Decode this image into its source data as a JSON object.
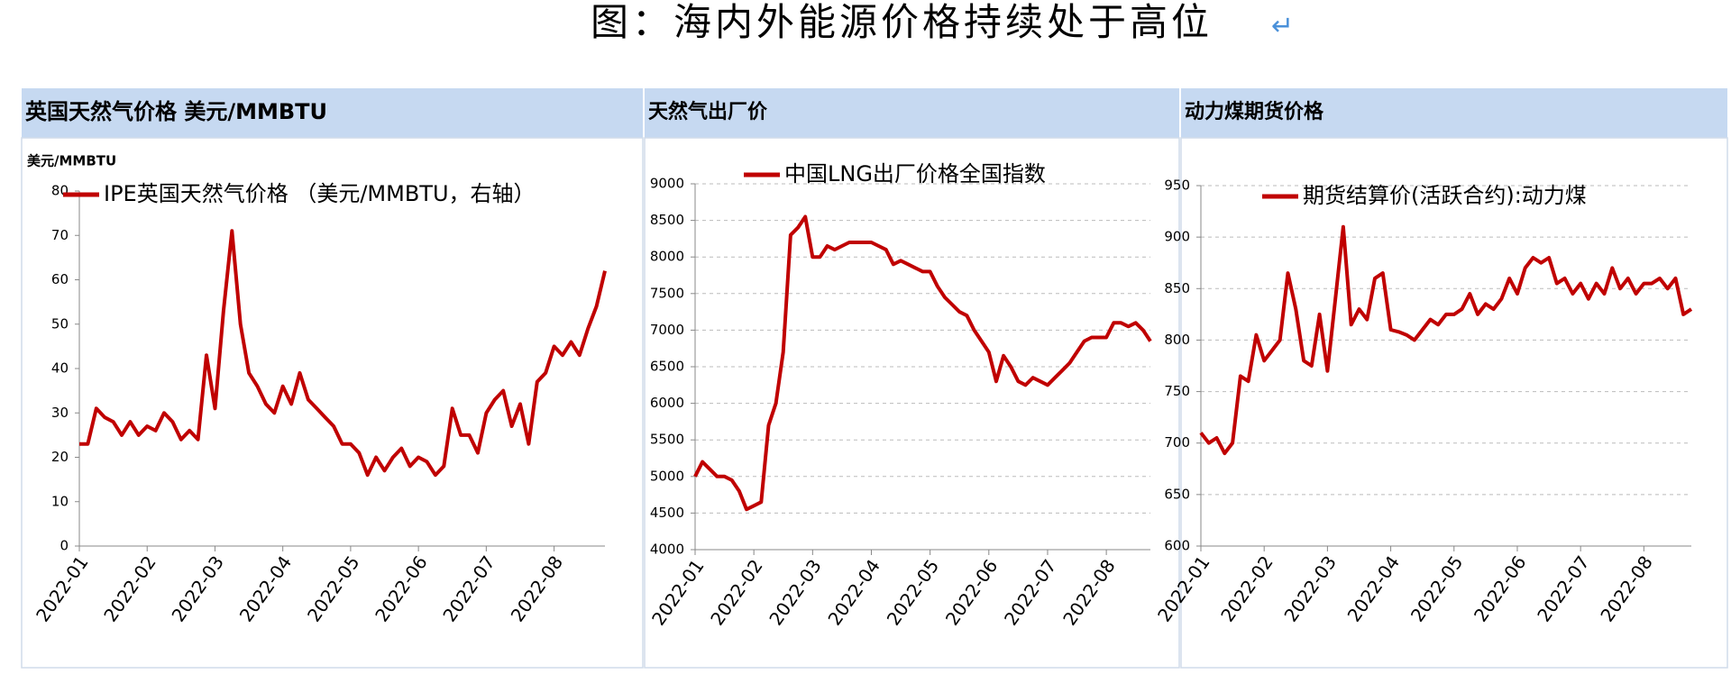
{
  "title": "图：海内外能源价格持续处于高位",
  "paragraph_mark": "↵",
  "chart_data": [
    {
      "type": "line",
      "title": "英国天然气价格 美元/MMBTU",
      "y_label": "美元/MMBTU",
      "categories": [
        "2022-01",
        null,
        null,
        null,
        null,
        null,
        null,
        null,
        "2022-02",
        null,
        null,
        null,
        null,
        null,
        null,
        null,
        "2022-03",
        null,
        null,
        null,
        null,
        null,
        null,
        null,
        "2022-04",
        null,
        null,
        null,
        null,
        null,
        null,
        null,
        "2022-05",
        null,
        null,
        null,
        null,
        null,
        null,
        null,
        "2022-06",
        null,
        null,
        null,
        null,
        null,
        null,
        null,
        "2022-07",
        null,
        null,
        null,
        null,
        null,
        null,
        null,
        "2022-08",
        null,
        null,
        null,
        null,
        null,
        null
      ],
      "series": [
        {
          "name": "IPE英国天然气价格 （美元/MMBTU，右轴）",
          "color": "#c00000",
          "values": [
            23,
            23,
            31,
            29,
            28,
            25,
            28,
            25,
            27,
            26,
            30,
            28,
            24,
            26,
            24,
            43,
            31,
            53,
            71,
            50,
            39,
            36,
            32,
            30,
            36,
            32,
            39,
            33,
            31,
            29,
            27,
            23,
            23,
            21,
            16,
            20,
            17,
            20,
            22,
            18,
            20,
            19,
            16,
            18,
            31,
            25,
            25,
            21,
            30,
            33,
            35,
            27,
            32,
            23,
            37,
            39,
            45,
            43,
            46,
            43,
            49,
            54,
            62
          ]
        }
      ],
      "ylim": [
        0,
        80
      ],
      "yticks": [
        0,
        10,
        20,
        30,
        40,
        50,
        60,
        70,
        80
      ],
      "grid": false
    },
    {
      "type": "line",
      "title": "天然气出厂价",
      "categories": [
        "2022-01",
        null,
        null,
        null,
        null,
        null,
        null,
        null,
        "2022-02",
        null,
        null,
        null,
        null,
        null,
        null,
        null,
        "2022-03",
        null,
        null,
        null,
        null,
        null,
        null,
        null,
        "2022-04",
        null,
        null,
        null,
        null,
        null,
        null,
        null,
        "2022-05",
        null,
        null,
        null,
        null,
        null,
        null,
        null,
        "2022-06",
        null,
        null,
        null,
        null,
        null,
        null,
        null,
        "2022-07",
        null,
        null,
        null,
        null,
        null,
        null,
        null,
        "2022-08",
        null,
        null,
        null,
        null,
        null,
        null
      ],
      "series": [
        {
          "name": "中国LNG出厂价格全国指数",
          "color": "#c00000",
          "values": [
            5000,
            5200,
            5100,
            5000,
            5000,
            4950,
            4800,
            4550,
            4600,
            4650,
            5700,
            6000,
            6700,
            8300,
            8400,
            8550,
            8000,
            8000,
            8150,
            8100,
            8150,
            8200,
            8200,
            8200,
            8200,
            8150,
            8100,
            7900,
            7950,
            7900,
            7850,
            7800,
            7800,
            7600,
            7450,
            7350,
            7250,
            7200,
            7000,
            6850,
            6700,
            6300,
            6650,
            6500,
            6300,
            6250,
            6350,
            6300,
            6250,
            6350,
            6450,
            6550,
            6700,
            6850,
            6900,
            6900,
            6900,
            7100,
            7100,
            7050,
            7100,
            7000,
            6850
          ]
        }
      ],
      "ylim": [
        4000,
        9000
      ],
      "yticks": [
        4000,
        4500,
        5000,
        5500,
        6000,
        6500,
        7000,
        7500,
        8000,
        8500,
        9000
      ],
      "grid": true
    },
    {
      "type": "line",
      "title": "动力煤期货价格",
      "categories": [
        "2022-01",
        null,
        null,
        null,
        null,
        null,
        null,
        null,
        "2022-02",
        null,
        null,
        null,
        null,
        null,
        null,
        null,
        "2022-03",
        null,
        null,
        null,
        null,
        null,
        null,
        null,
        "2022-04",
        null,
        null,
        null,
        null,
        null,
        null,
        null,
        "2022-05",
        null,
        null,
        null,
        null,
        null,
        null,
        null,
        "2022-06",
        null,
        null,
        null,
        null,
        null,
        null,
        null,
        "2022-07",
        null,
        null,
        null,
        null,
        null,
        null,
        null,
        "2022-08",
        null,
        null,
        null,
        null,
        null,
        null
      ],
      "series": [
        {
          "name": "期货结算价(活跃合约):动力煤",
          "color": "#c00000",
          "values": [
            710,
            700,
            705,
            690,
            700,
            765,
            760,
            805,
            780,
            790,
            800,
            865,
            830,
            780,
            775,
            825,
            770,
            840,
            910,
            815,
            830,
            820,
            860,
            865,
            810,
            808,
            805,
            800,
            810,
            820,
            815,
            825,
            825,
            830,
            845,
            825,
            835,
            830,
            840,
            860,
            845,
            870,
            880,
            875,
            880,
            855,
            860,
            845,
            855,
            840,
            855,
            845,
            870,
            850,
            860,
            845,
            855,
            855,
            860,
            850,
            860,
            825,
            830
          ]
        }
      ],
      "ylim": [
        600,
        950
      ],
      "yticks": [
        600,
        650,
        700,
        750,
        800,
        850,
        900,
        950
      ],
      "grid": true
    }
  ]
}
